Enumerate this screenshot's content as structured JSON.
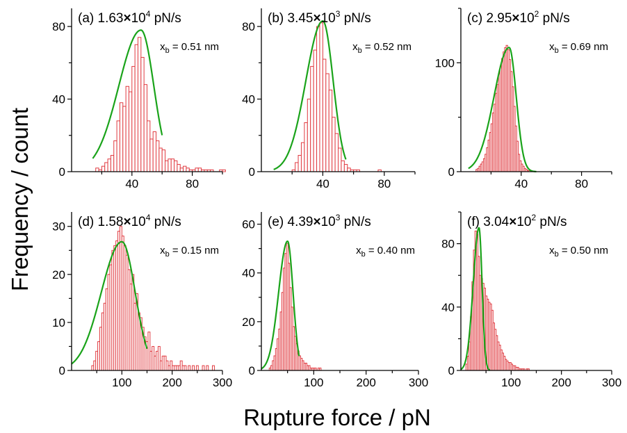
{
  "figure": {
    "xlabel": "Rupture force / pN",
    "ylabel": "Frequency / count"
  },
  "colors": {
    "bar_edge": "#e0393f",
    "bar_fill": "#ffffff",
    "fit": "#1aa31a",
    "axis": "#000000"
  },
  "chart_data": [
    {
      "type": "bar",
      "id": "a",
      "label": "(a)",
      "rate": "1.63",
      "exp": "4",
      "unit": "pN/s",
      "xb_value": "= 0.51 nm",
      "xlim": [
        0,
        100
      ],
      "ylim": [
        0,
        90
      ],
      "xticks": [
        40,
        80
      ],
      "yticks": [
        0,
        40,
        80
      ],
      "bin_start": 14,
      "bin_width": 2,
      "values": [
        0,
        2,
        1,
        3,
        5,
        7,
        9,
        17,
        28,
        38,
        36,
        47,
        44,
        58,
        70,
        74,
        63,
        48,
        28,
        18,
        22,
        17,
        13,
        12,
        6,
        7,
        7,
        6,
        4,
        2,
        3,
        2,
        1,
        1,
        2,
        2,
        1,
        1,
        1,
        1,
        0,
        0,
        1,
        1
      ],
      "fit": {
        "peak": 46,
        "amplitude": 78,
        "left_width": 14.7,
        "right_width": 8.5,
        "x_range": [
          14,
          60
        ]
      }
    },
    {
      "type": "bar",
      "id": "b",
      "label": "(b)",
      "rate": "3.45",
      "exp": "3",
      "unit": "pN/s",
      "xb_value": "= 0.52 nm",
      "xlim": [
        0,
        100
      ],
      "ylim": [
        0,
        90
      ],
      "xticks": [
        40,
        80
      ],
      "yticks": [
        0,
        40,
        80
      ],
      "bin_start": 18,
      "bin_width": 2,
      "values": [
        0,
        1,
        5,
        9,
        16,
        27,
        40,
        58,
        67,
        80,
        82,
        62,
        54,
        45,
        30,
        21,
        13,
        6,
        4,
        2,
        1,
        1,
        1,
        0,
        0,
        0,
        0,
        0,
        0,
        1
      ],
      "fit": {
        "peak": 40,
        "amplitude": 83,
        "left_width": 11,
        "right_width": 6.7,
        "x_range": [
          8,
          55
        ]
      }
    },
    {
      "type": "bar",
      "id": "c",
      "label": "(c)",
      "rate": "2.95",
      "exp": "2",
      "unit": "pN/s",
      "xb_value": "= 0.69 nm",
      "xlim": [
        0,
        100
      ],
      "ylim": [
        0,
        150
      ],
      "xticks": [
        40,
        80
      ],
      "yticks": [
        0,
        100
      ],
      "bin_start": 10,
      "bin_width": 1,
      "values": [
        2,
        3,
        5,
        7,
        9,
        12,
        16,
        22,
        29,
        36,
        44,
        54,
        62,
        72,
        80,
        90,
        97,
        104,
        110,
        114,
        116,
        112,
        103,
        92,
        78,
        60,
        42,
        28,
        16,
        10,
        7,
        5,
        3,
        2,
        1,
        1
      ],
      "fit": {
        "peak": 32,
        "amplitude": 114,
        "left_width": 10,
        "right_width": 4.7,
        "x_range": [
          5,
          50
        ]
      }
    },
    {
      "type": "bar",
      "id": "d",
      "label": "(d)",
      "rate": "1.58",
      "exp": "4",
      "unit": "pN/s",
      "xb_value": "= 0.15 nm",
      "xlim": [
        0,
        300
      ],
      "ylim": [
        0,
        33
      ],
      "xticks": [
        100,
        200,
        300
      ],
      "yticks": [
        0,
        10,
        20,
        30
      ],
      "bin_start": 40,
      "bin_width": 4,
      "values": [
        1,
        2,
        4,
        6,
        9,
        12,
        14,
        17,
        20,
        22,
        25,
        26,
        27,
        29,
        30,
        28,
        26,
        24,
        21,
        18,
        20,
        14,
        16,
        12,
        11,
        9,
        7,
        6,
        8,
        4,
        5,
        3,
        4,
        5,
        2,
        3,
        3,
        2,
        1,
        2,
        1,
        1,
        1,
        1,
        2,
        1,
        1,
        0,
        1,
        0,
        1,
        0,
        1,
        0,
        0,
        1,
        0,
        1,
        0,
        0,
        1
      ],
      "fit": {
        "peak": 100,
        "amplitude": 26.8,
        "left_width": 41,
        "right_width": 26.5,
        "x_range": [
          0,
          150
        ]
      }
    },
    {
      "type": "bar",
      "id": "e",
      "label": "(e)",
      "rate": "4.39",
      "exp": "3",
      "unit": "pN/s",
      "xb_value": "= 0.40 nm",
      "xlim": [
        0,
        300
      ],
      "ylim": [
        0,
        65
      ],
      "xticks": [
        100,
        200,
        300
      ],
      "yticks": [
        0,
        20,
        40,
        60
      ],
      "bin_start": 15,
      "bin_width": 3,
      "values": [
        1,
        2,
        4,
        6,
        9,
        13,
        17,
        24,
        32,
        42,
        48,
        52,
        44,
        34,
        26,
        18,
        14,
        11,
        8,
        6,
        5,
        4,
        3,
        3,
        2,
        2,
        1,
        1,
        1,
        1,
        0,
        1,
        1
      ],
      "fit": {
        "peak": 50,
        "amplitude": 53,
        "left_width": 17,
        "right_width": 10.5,
        "x_range": [
          0,
          72
        ]
      }
    },
    {
      "type": "bar",
      "id": "f",
      "label": "(f)",
      "rate": "3.04",
      "exp": "2",
      "unit": "pN/s",
      "xb_value": "= 0.50 nm",
      "xlim": [
        0,
        300
      ],
      "ylim": [
        0,
        100
      ],
      "xticks": [
        100,
        200,
        300
      ],
      "yticks": [
        0,
        40,
        80
      ],
      "bin_start": 10,
      "bin_width": 3,
      "values": [
        4,
        9,
        18,
        34,
        56,
        76,
        88,
        86,
        72,
        60,
        58,
        55,
        52,
        47,
        45,
        43,
        42,
        38,
        30,
        26,
        22,
        18,
        16,
        13,
        11,
        9,
        7,
        6,
        5,
        5,
        4,
        3,
        3,
        2,
        2,
        1,
        1,
        1,
        1,
        0,
        1,
        1
      ],
      "fit": {
        "peak": 36,
        "amplitude": 90,
        "left_width": 11.5,
        "right_width": 6.2,
        "x_range": [
          0,
          58
        ]
      }
    }
  ]
}
